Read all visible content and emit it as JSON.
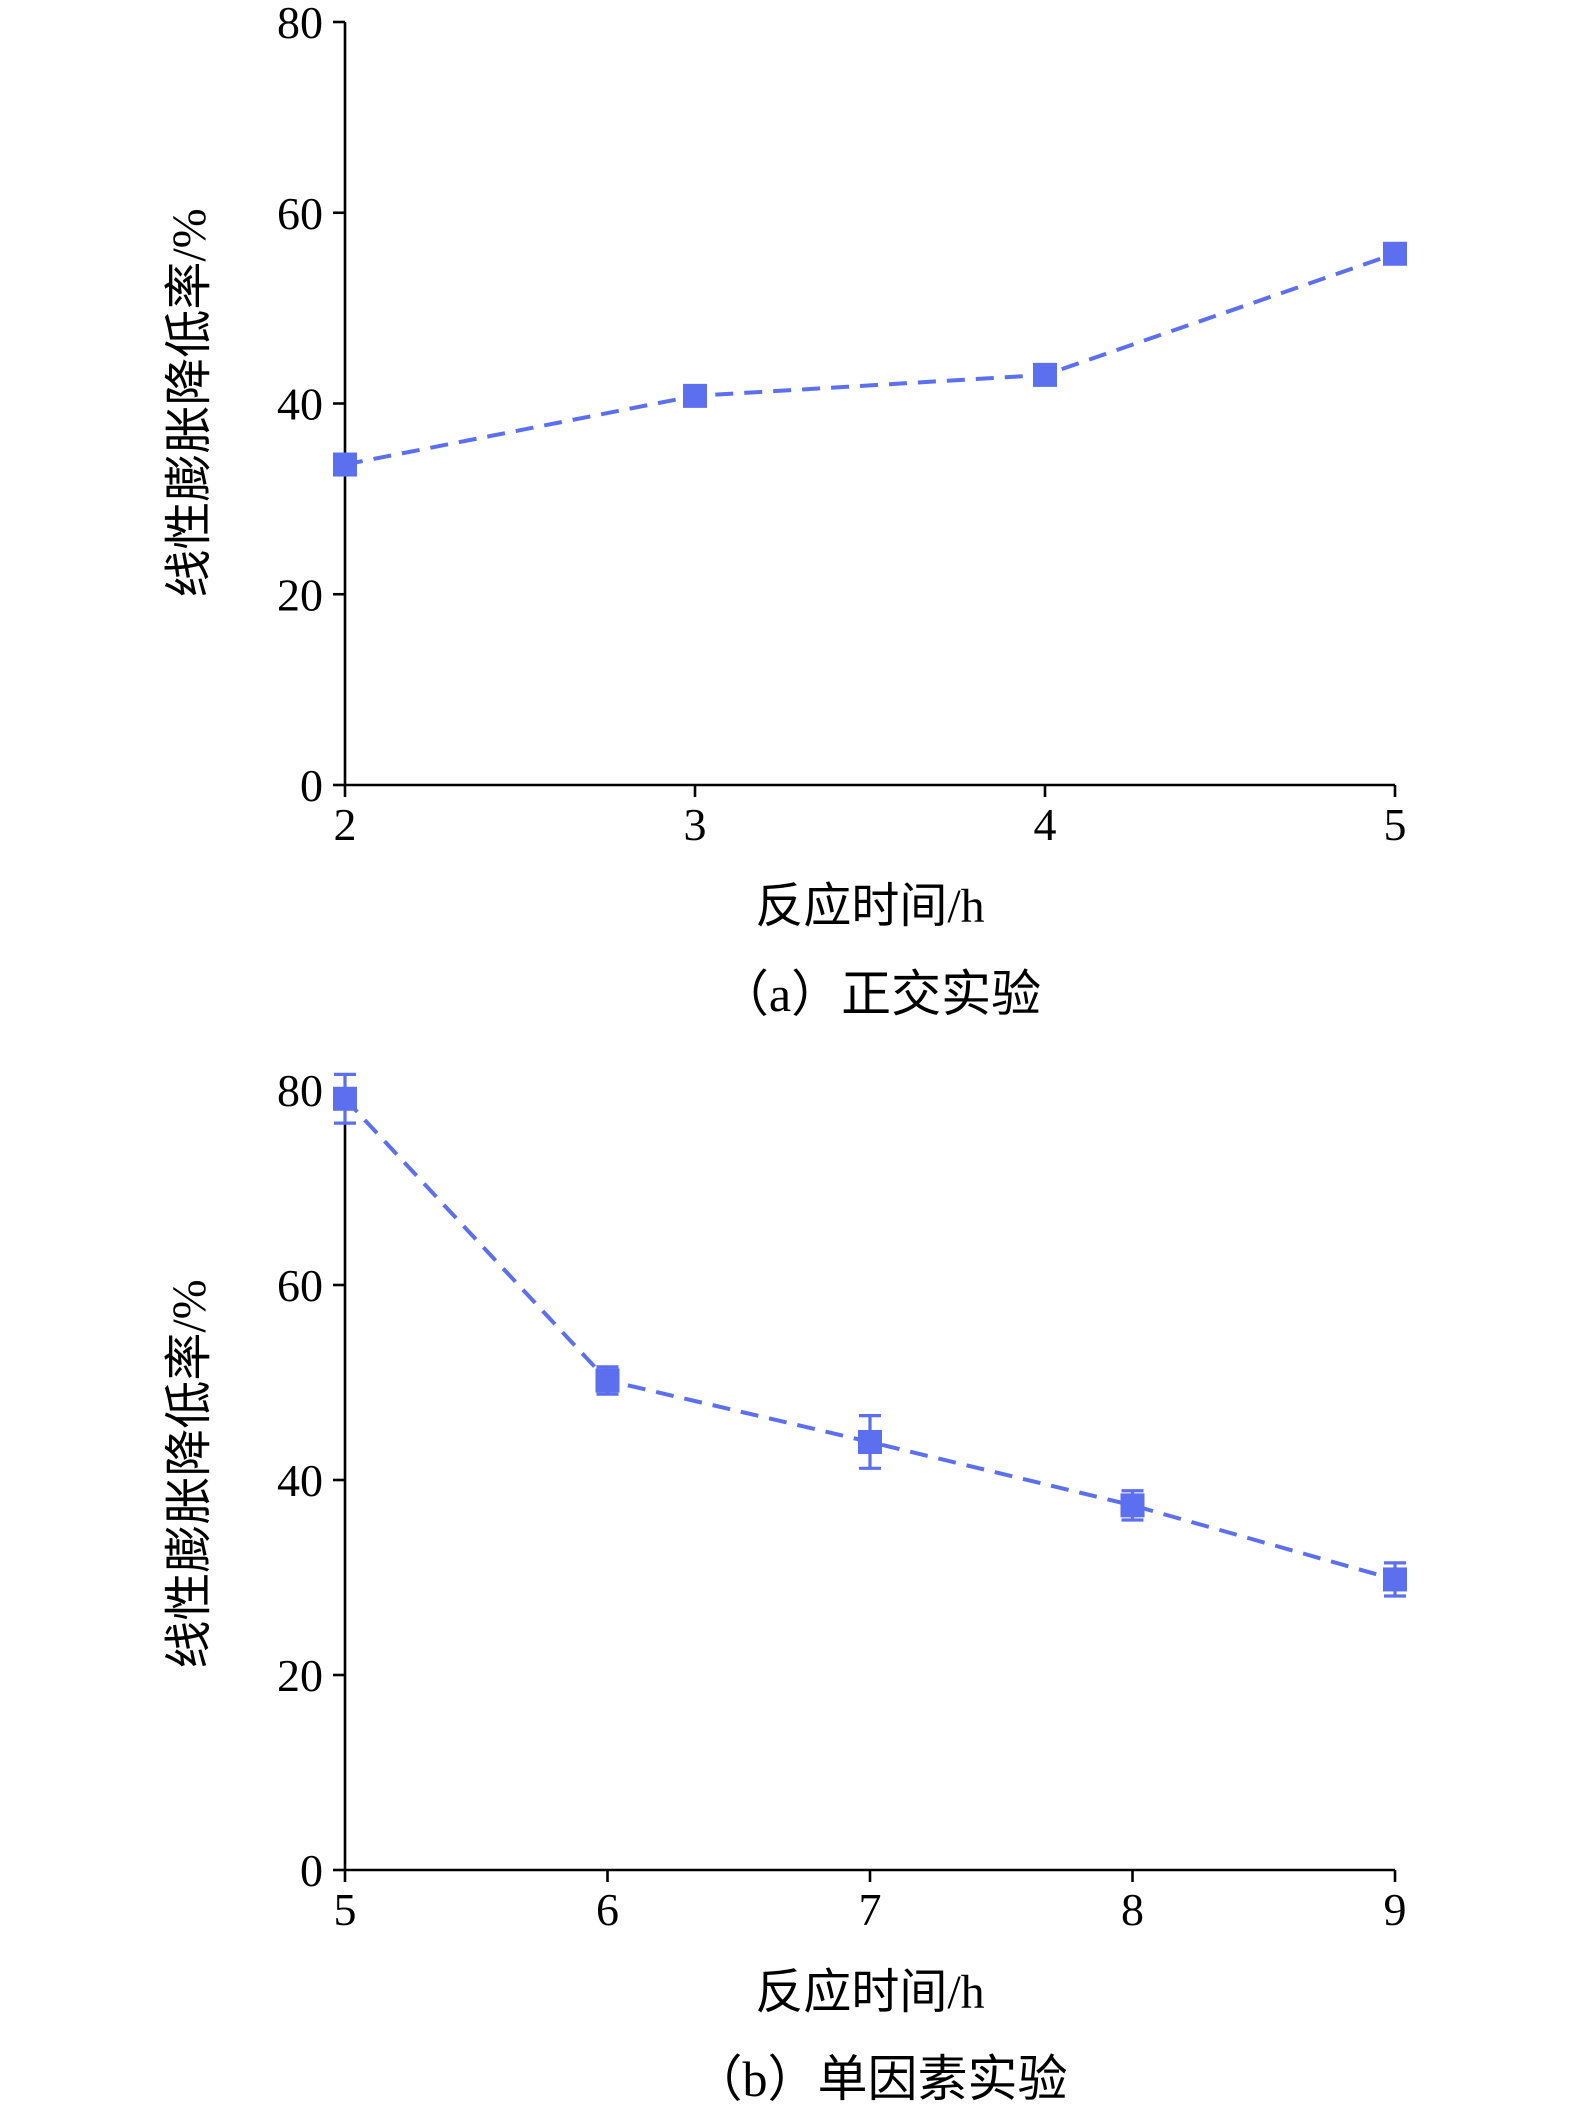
{
  "chart_data": [
    {
      "type": "line",
      "caption": "（a）正交实验",
      "xlabel": "反应时间/h",
      "ylabel": "线性膨胀降低率/%",
      "xlim": [
        2,
        5
      ],
      "ylim": [
        0,
        80
      ],
      "x_ticks": [
        "2",
        "3",
        "4",
        "5"
      ],
      "y_ticks": [
        "0",
        "20",
        "40",
        "60",
        "80"
      ],
      "grid": false,
      "series": [
        {
          "x": [
            2,
            3,
            4,
            5
          ],
          "y": [
            33.6,
            40.8,
            43.0,
            55.7
          ],
          "color": "#5b6fef",
          "marker": "square",
          "line_style": "dashed"
        }
      ]
    },
    {
      "type": "line",
      "caption": "（b）单因素实验",
      "xlabel": "反应时间/h",
      "ylabel": "线性膨胀降低率/%",
      "xlim": [
        5,
        9
      ],
      "ylim": [
        0,
        80
      ],
      "x_ticks": [
        "5",
        "6",
        "7",
        "8",
        "9"
      ],
      "y_ticks": [
        "0",
        "20",
        "40",
        "60",
        "80"
      ],
      "grid": false,
      "series": [
        {
          "x": [
            5,
            6,
            7,
            8,
            9
          ],
          "y": [
            79.1,
            50.2,
            43.9,
            37.4,
            29.8
          ],
          "error": [
            2.5,
            1.4,
            2.7,
            1.5,
            1.7
          ],
          "color": "#5b6fef",
          "marker": "square",
          "line_style": "dashed"
        }
      ]
    }
  ]
}
